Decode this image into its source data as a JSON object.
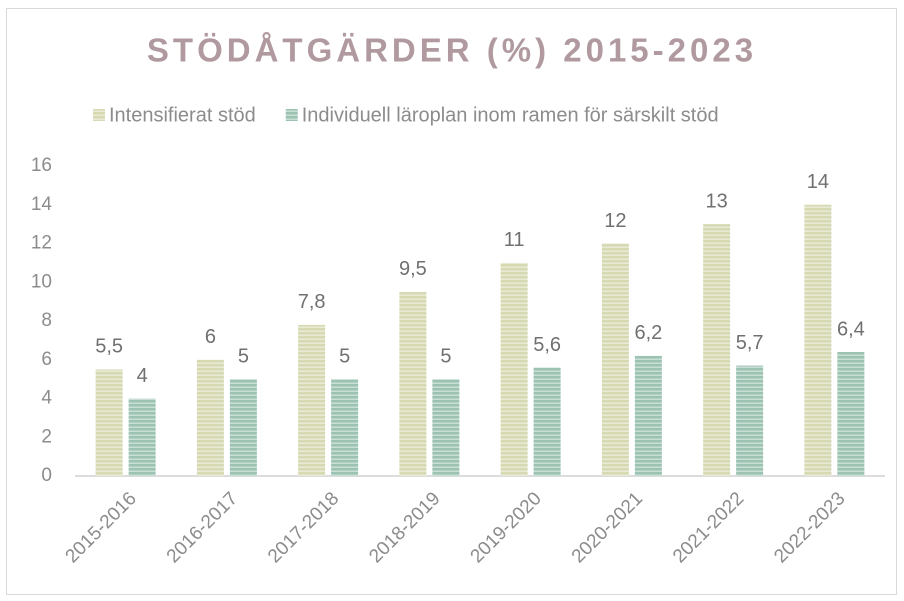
{
  "chart_data": {
    "type": "bar",
    "title": "STÖDÅTGÄRDER (%) 2015-2023",
    "categories": [
      "2015-2016",
      "2016-2017",
      "2017-2018",
      "2018-2019",
      "2019-2020",
      "2020-2021",
      "2021-2022",
      "2022-2023"
    ],
    "series": [
      {
        "name": "Intensifierat stöd",
        "color": "#d6d9b2",
        "values": [
          5.5,
          6,
          7.8,
          9.5,
          11,
          12,
          13,
          14
        ],
        "value_labels": [
          "5,5",
          "6",
          "7,8",
          "9,5",
          "11",
          "12",
          "13",
          "14"
        ]
      },
      {
        "name": "Individuell läroplan inom ramen för särskilt stöd",
        "color": "#9cc3b2",
        "values": [
          4,
          5,
          5,
          5,
          5.6,
          6.2,
          5.7,
          6.4
        ],
        "value_labels": [
          "4",
          "5",
          "5",
          "5",
          "5,6",
          "6,2",
          "5,7",
          "6,4"
        ]
      }
    ],
    "ylim": [
      0,
      16
    ],
    "yticks": [
      0,
      2,
      4,
      6,
      8,
      10,
      12,
      14,
      16
    ],
    "grid": false,
    "legend": "top"
  }
}
